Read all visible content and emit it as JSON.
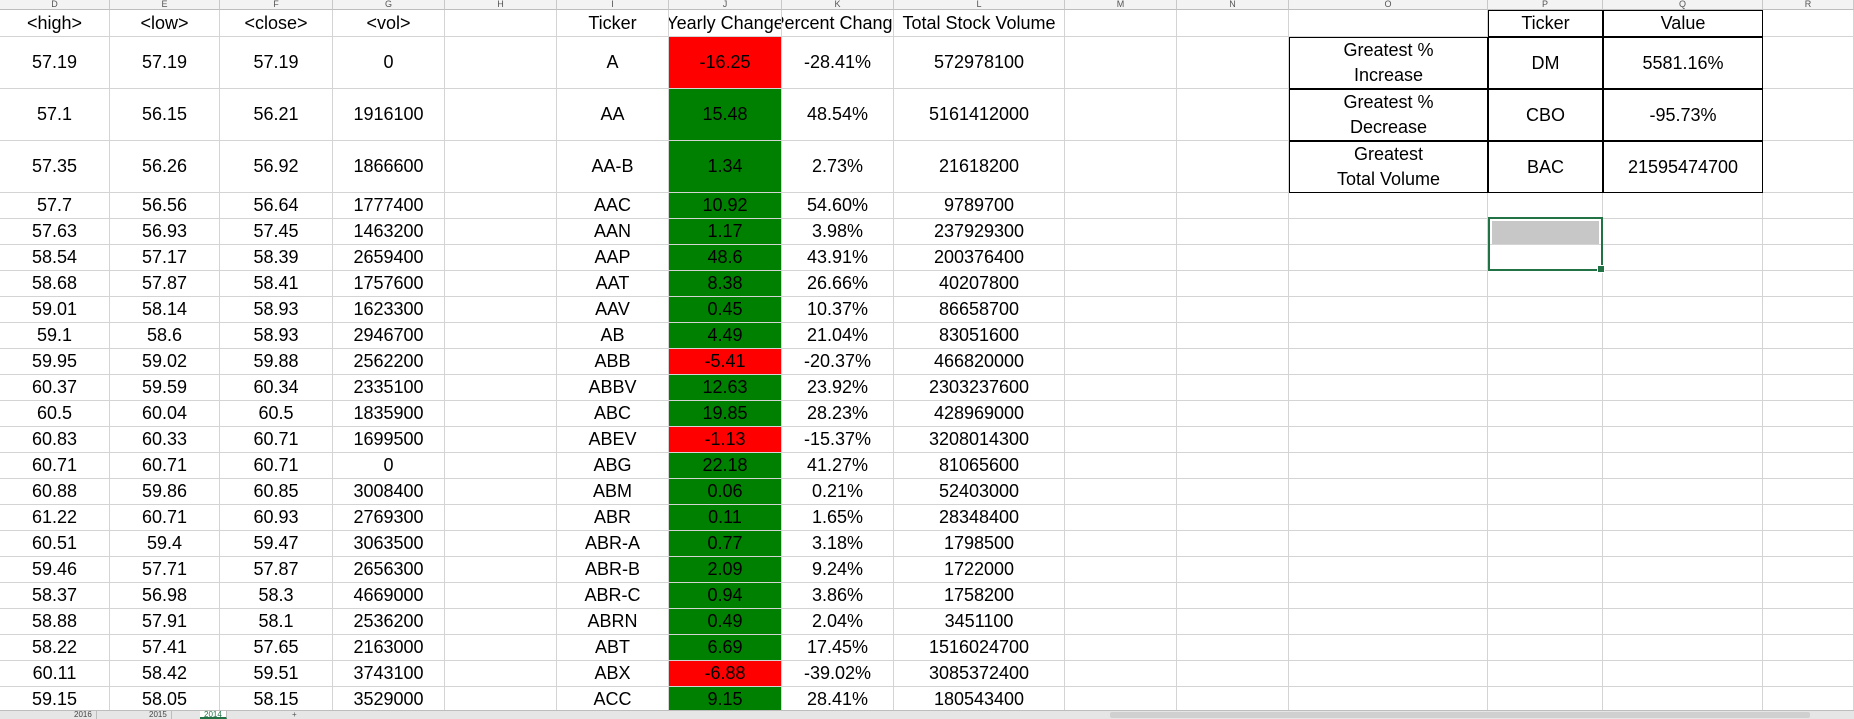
{
  "columns": [
    "D",
    "E",
    "F",
    "G",
    "H",
    "I",
    "J",
    "K",
    "L",
    "M",
    "N",
    "O",
    "P",
    "Q",
    "R"
  ],
  "headers": {
    "D": "<high>",
    "E": "<low>",
    "F": "<close>",
    "G": "<vol>",
    "I": "Ticker",
    "J": "Yearly Change",
    "K": "Percent Change",
    "L": "Total Stock Volume",
    "P": "Ticker",
    "Q": "Value"
  },
  "rows": [
    [
      "57.19",
      "57.19",
      "57.19",
      "0",
      "A",
      "-16.25",
      "-28.41%",
      "572978100"
    ],
    [
      "57.1",
      "56.15",
      "56.21",
      "1916100",
      "AA",
      "15.48",
      "48.54%",
      "5161412000"
    ],
    [
      "57.35",
      "56.26",
      "56.92",
      "1866600",
      "AA-B",
      "1.34",
      "2.73%",
      "21618200"
    ],
    [
      "57.7",
      "56.56",
      "56.64",
      "1777400",
      "AAC",
      "10.92",
      "54.60%",
      "9789700"
    ],
    [
      "57.63",
      "56.93",
      "57.45",
      "1463200",
      "AAN",
      "1.17",
      "3.98%",
      "237929300"
    ],
    [
      "58.54",
      "57.17",
      "58.39",
      "2659400",
      "AAP",
      "48.6",
      "43.91%",
      "200376400"
    ],
    [
      "58.68",
      "57.87",
      "58.41",
      "1757600",
      "AAT",
      "8.38",
      "26.66%",
      "40207800"
    ],
    [
      "59.01",
      "58.14",
      "58.93",
      "1623300",
      "AAV",
      "0.45",
      "10.37%",
      "86658700"
    ],
    [
      "59.1",
      "58.6",
      "58.93",
      "2946700",
      "AB",
      "4.49",
      "21.04%",
      "83051600"
    ],
    [
      "59.95",
      "59.02",
      "59.88",
      "2562200",
      "ABB",
      "-5.41",
      "-20.37%",
      "466820000"
    ],
    [
      "60.37",
      "59.59",
      "60.34",
      "2335100",
      "ABBV",
      "12.63",
      "23.92%",
      "2303237600"
    ],
    [
      "60.5",
      "60.04",
      "60.5",
      "1835900",
      "ABC",
      "19.85",
      "28.23%",
      "428969000"
    ],
    [
      "60.83",
      "60.33",
      "60.71",
      "1699500",
      "ABEV",
      "-1.13",
      "-15.37%",
      "3208014300"
    ],
    [
      "60.71",
      "60.71",
      "60.71",
      "0",
      "ABG",
      "22.18",
      "41.27%",
      "81065600"
    ],
    [
      "60.88",
      "59.86",
      "60.85",
      "3008400",
      "ABM",
      "0.06",
      "0.21%",
      "52403000"
    ],
    [
      "61.22",
      "60.71",
      "60.93",
      "2769300",
      "ABR",
      "0.11",
      "1.65%",
      "28348400"
    ],
    [
      "60.51",
      "59.4",
      "59.47",
      "3063500",
      "ABR-A",
      "0.77",
      "3.18%",
      "1798500"
    ],
    [
      "59.46",
      "57.71",
      "57.87",
      "2656300",
      "ABR-B",
      "2.09",
      "9.24%",
      "1722000"
    ],
    [
      "58.37",
      "56.98",
      "58.3",
      "4669000",
      "ABR-C",
      "0.94",
      "3.86%",
      "1758200"
    ],
    [
      "58.88",
      "57.91",
      "58.1",
      "2536200",
      "ABRN",
      "0.49",
      "2.04%",
      "3451100"
    ],
    [
      "58.22",
      "57.41",
      "57.65",
      "2163000",
      "ABT",
      "6.69",
      "17.45%",
      "1516024700"
    ],
    [
      "60.11",
      "58.42",
      "59.51",
      "3743100",
      "ABX",
      "-6.88",
      "-39.02%",
      "3085372400"
    ],
    [
      "59.15",
      "58.05",
      "58.15",
      "3529000",
      "ACC",
      "9.15",
      "28.41%",
      "180543400"
    ]
  ],
  "summary": [
    {
      "label_lines": [
        "Greatest %",
        "Increase"
      ],
      "ticker": "DM",
      "value": "5581.16%"
    },
    {
      "label_lines": [
        "Greatest %",
        "Decrease"
      ],
      "ticker": "CBO",
      "value": "-95.73%"
    },
    {
      "label_lines": [
        "Greatest",
        "Total Volume"
      ],
      "ticker": "BAC",
      "value": "21595474700"
    }
  ],
  "tabs": {
    "t2016": "2016",
    "t2015": "2015",
    "t2014": "2014",
    "add": "+"
  },
  "colors": {
    "positive": "#008000",
    "negative": "#ff0000",
    "selection": "#217346"
  }
}
